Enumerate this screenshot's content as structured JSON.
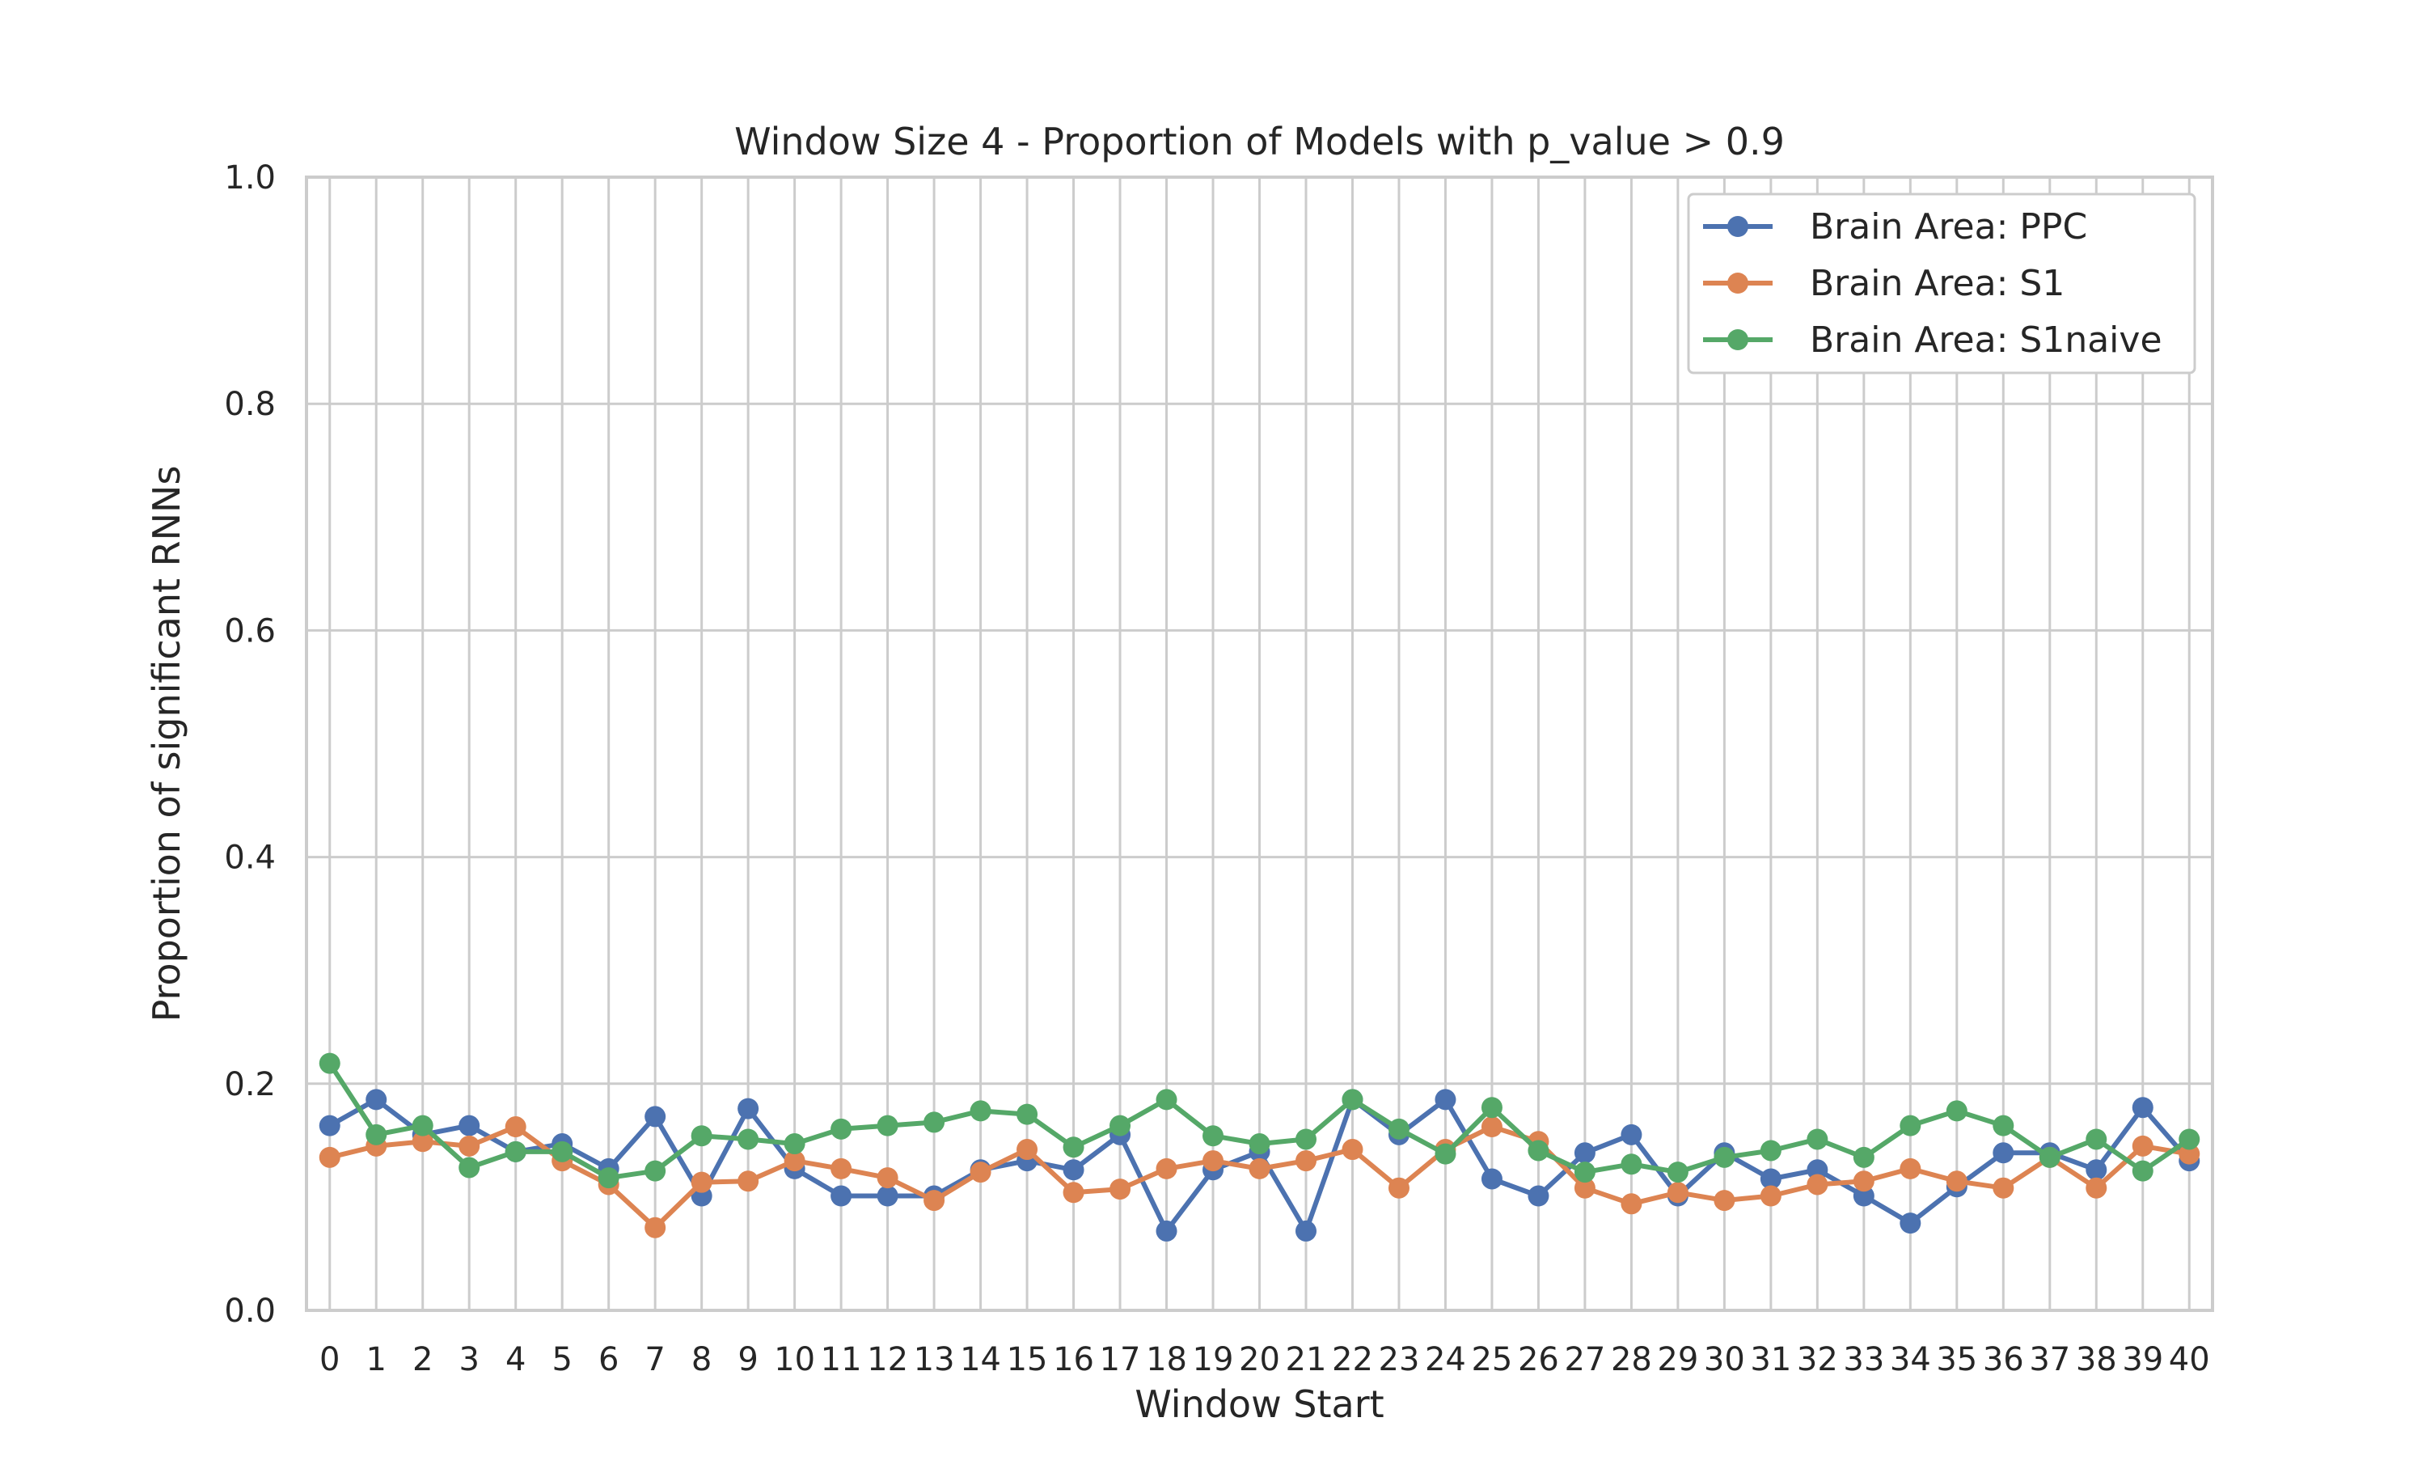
{
  "chart_data": {
    "type": "line",
    "title": "Window Size 4 - Proportion of Models with p_value > 0.9",
    "xlabel": "Window Start",
    "ylabel": "Proportion of significant RNNs",
    "x": [
      0,
      1,
      2,
      3,
      4,
      5,
      6,
      7,
      8,
      9,
      10,
      11,
      12,
      13,
      14,
      15,
      16,
      17,
      18,
      19,
      20,
      21,
      22,
      23,
      24,
      25,
      26,
      27,
      28,
      29,
      30,
      31,
      32,
      33,
      34,
      35,
      36,
      37,
      38,
      39,
      40
    ],
    "x_tick_labels": [
      "0",
      "1",
      "2",
      "3",
      "4",
      "5",
      "6",
      "7",
      "8",
      "9",
      "10",
      "11",
      "12",
      "13",
      "14",
      "15",
      "16",
      "17",
      "18",
      "19",
      "20",
      "21",
      "22",
      "23",
      "24",
      "25",
      "26",
      "27",
      "28",
      "29",
      "30",
      "31",
      "32",
      "33",
      "34",
      "35",
      "36",
      "37",
      "38",
      "39",
      "40"
    ],
    "ylim": [
      0.0,
      1.0
    ],
    "y_ticks": [
      0.0,
      0.2,
      0.4,
      0.6,
      0.8,
      1.0
    ],
    "y_tick_labels": [
      "0.0",
      "0.2",
      "0.4",
      "0.6",
      "0.8",
      "1.0"
    ],
    "grid": true,
    "legend_position": "top-right",
    "series": [
      {
        "name": "Brain Area: PPC",
        "color": "#4c72b0",
        "values": [
          0.163,
          0.186,
          0.155,
          0.163,
          0.14,
          0.147,
          0.125,
          0.171,
          0.101,
          0.178,
          0.125,
          0.101,
          0.101,
          0.101,
          0.124,
          0.132,
          0.124,
          0.155,
          0.07,
          0.124,
          0.14,
          0.07,
          0.186,
          0.155,
          0.186,
          0.116,
          0.101,
          0.139,
          0.155,
          0.101,
          0.139,
          0.116,
          0.124,
          0.101,
          0.077,
          0.109,
          0.139,
          0.139,
          0.124,
          0.179,
          0.132
        ]
      },
      {
        "name": "Brain Area: S1",
        "color": "#dd8452",
        "values": [
          0.135,
          0.145,
          0.149,
          0.145,
          0.162,
          0.132,
          0.111,
          0.073,
          0.113,
          0.114,
          0.132,
          0.125,
          0.117,
          0.097,
          0.122,
          0.142,
          0.104,
          0.107,
          0.125,
          0.132,
          0.125,
          0.132,
          0.142,
          0.108,
          0.142,
          0.162,
          0.149,
          0.108,
          0.094,
          0.104,
          0.097,
          0.101,
          0.111,
          0.114,
          0.125,
          0.114,
          0.108,
          0.135,
          0.108,
          0.145,
          0.138
        ]
      },
      {
        "name": "Brain Area: S1naive",
        "color": "#55a868",
        "values": [
          0.218,
          0.155,
          0.163,
          0.126,
          0.14,
          0.14,
          0.117,
          0.123,
          0.154,
          0.151,
          0.147,
          0.16,
          0.163,
          0.166,
          0.176,
          0.173,
          0.144,
          0.163,
          0.186,
          0.154,
          0.147,
          0.151,
          0.186,
          0.16,
          0.138,
          0.179,
          0.141,
          0.122,
          0.129,
          0.122,
          0.135,
          0.141,
          0.151,
          0.135,
          0.163,
          0.176,
          0.163,
          0.135,
          0.151,
          0.123,
          0.151
        ]
      }
    ]
  }
}
